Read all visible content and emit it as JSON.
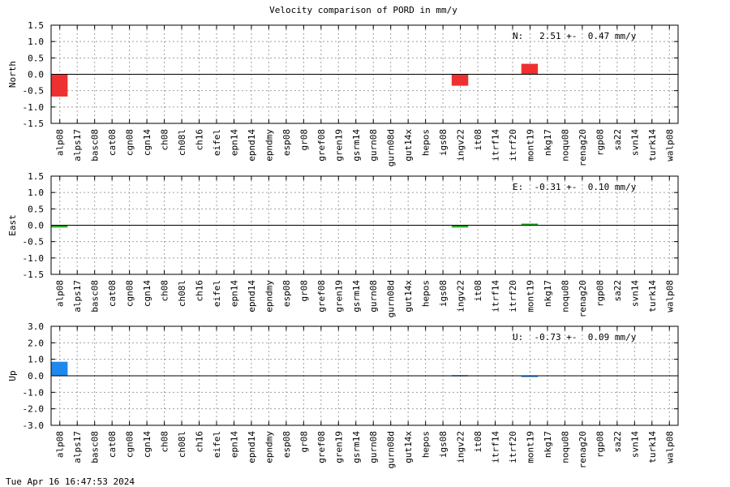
{
  "title": "Velocity comparison of PORD in mm/y",
  "footer": "Tue Apr 16 16:47:53 2024",
  "chart_data": [
    {
      "type": "bar",
      "component": "north",
      "ylabel": "North",
      "ylim": [
        -1.5,
        1.5
      ],
      "yticks": [
        -1.5,
        -1.0,
        -0.5,
        0.0,
        0.5,
        1.0,
        1.5
      ],
      "ytick_labels": [
        "-1.5",
        "-1.0",
        "-0.5",
        "0.0",
        "0.5",
        "1.0",
        "1.5"
      ],
      "annotation": "N:   2.51 +-  0.47 mm/y",
      "color": "#ef3030",
      "grid": true,
      "categories": [
        "alp08",
        "alps17",
        "basc08",
        "cat08",
        "cgn08",
        "cgn14",
        "ch08",
        "ch08l",
        "ch16",
        "eifel",
        "epn14",
        "epnd14",
        "epndmy",
        "esp08",
        "gr08",
        "gref08",
        "gren19",
        "gsrm14",
        "gurn08",
        "gurn08d",
        "gut14x",
        "hepos",
        "igs08",
        "ingv22",
        "it08",
        "itrf14",
        "itrf20",
        "mont19",
        "nkg17",
        "noqu08",
        "renag20",
        "rgp08",
        "sa22",
        "svn14",
        "turk14",
        "walp08"
      ],
      "values": [
        -0.68,
        0,
        0,
        0,
        0,
        0,
        0,
        0,
        0,
        0,
        0,
        0,
        0,
        0,
        0,
        0,
        0,
        0,
        0,
        0,
        0,
        0,
        0,
        -0.35,
        0,
        0,
        0,
        0.32,
        0,
        0,
        0,
        0,
        0,
        0,
        0,
        0
      ]
    },
    {
      "type": "bar",
      "component": "east",
      "ylabel": "East",
      "ylim": [
        -1.5,
        1.5
      ],
      "yticks": [
        -1.5,
        -1.0,
        -0.5,
        0.0,
        0.5,
        1.0,
        1.5
      ],
      "ytick_labels": [
        "-1.5",
        "-1.0",
        "-0.5",
        "0.0",
        "0.5",
        "1.0",
        "1.5"
      ],
      "annotation": "E:  -0.31 +-  0.10 mm/y",
      "color": "#22aa22",
      "grid": true,
      "categories": [
        "alp08",
        "alps17",
        "basc08",
        "cat08",
        "cgn08",
        "cgn14",
        "ch08",
        "ch08l",
        "ch16",
        "eifel",
        "epn14",
        "epnd14",
        "epndmy",
        "esp08",
        "gr08",
        "gref08",
        "gren19",
        "gsrm14",
        "gurn08",
        "gurn08d",
        "gut14x",
        "hepos",
        "igs08",
        "ingv22",
        "it08",
        "itrf14",
        "itrf20",
        "mont19",
        "nkg17",
        "noqu08",
        "renag20",
        "rgp08",
        "sa22",
        "svn14",
        "turk14",
        "walp08"
      ],
      "values": [
        -0.07,
        0,
        0,
        0,
        0,
        0,
        0,
        0,
        0,
        0,
        0,
        0,
        0,
        0,
        0,
        0,
        0,
        0,
        0,
        0,
        0,
        0,
        0,
        -0.07,
        0,
        0,
        0,
        0.05,
        0,
        0,
        0,
        0,
        0,
        0,
        0,
        0
      ]
    },
    {
      "type": "bar",
      "component": "up",
      "ylabel": "Up",
      "ylim": [
        -3.0,
        3.0
      ],
      "yticks": [
        -3.0,
        -2.0,
        -1.0,
        0.0,
        1.0,
        2.0,
        3.0
      ],
      "ytick_labels": [
        "-3.0",
        "-2.0",
        "-1.0",
        "0.0",
        "1.0",
        "2.0",
        "3.0"
      ],
      "annotation": "U:  -0.73 +-  0.09 mm/y",
      "color": "#1e88ee",
      "grid": true,
      "categories": [
        "alp08",
        "alps17",
        "basc08",
        "cat08",
        "cgn08",
        "cgn14",
        "ch08",
        "ch08l",
        "ch16",
        "eifel",
        "epn14",
        "epnd14",
        "epndmy",
        "esp08",
        "gr08",
        "gref08",
        "gren19",
        "gsrm14",
        "gurn08",
        "gurn08d",
        "gut14x",
        "hepos",
        "igs08",
        "ingv22",
        "it08",
        "itrf14",
        "itrf20",
        "mont19",
        "nkg17",
        "noqu08",
        "renag20",
        "rgp08",
        "sa22",
        "svn14",
        "turk14",
        "walp08"
      ],
      "values": [
        0.85,
        0,
        0,
        0,
        0,
        0,
        0,
        0,
        0,
        0,
        0,
        0,
        0,
        0,
        0,
        0,
        0,
        0,
        0,
        0,
        0,
        0,
        0,
        0.04,
        0,
        0,
        0,
        -0.05,
        0,
        0,
        0,
        0,
        0,
        0,
        0,
        0
      ]
    }
  ]
}
